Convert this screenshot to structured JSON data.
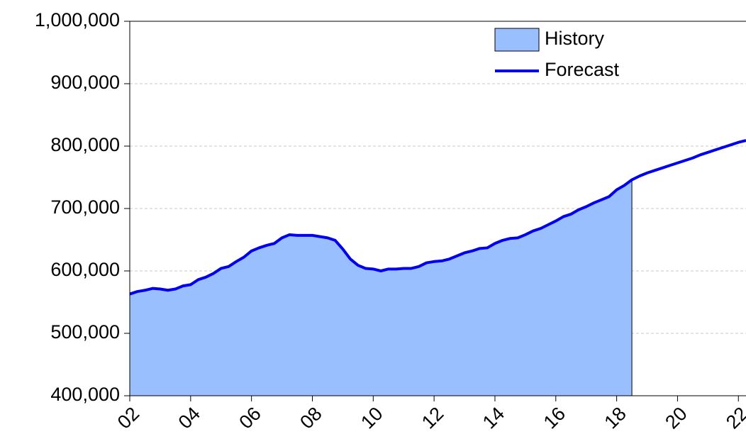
{
  "chart_data": {
    "type": "area-line",
    "x": [
      2002,
      2002.25,
      2002.5,
      2002.75,
      2003,
      2003.25,
      2003.5,
      2003.75,
      2004,
      2004.25,
      2004.5,
      2004.75,
      2005,
      2005.25,
      2005.5,
      2005.75,
      2006,
      2006.25,
      2006.5,
      2006.75,
      2007,
      2007.25,
      2007.5,
      2007.75,
      2008,
      2008.25,
      2008.5,
      2008.75,
      2009,
      2009.25,
      2009.5,
      2009.75,
      2010,
      2010.25,
      2010.5,
      2010.75,
      2011,
      2011.25,
      2011.5,
      2011.75,
      2012,
      2012.25,
      2012.5,
      2012.75,
      2013,
      2013.25,
      2013.5,
      2013.75,
      2014,
      2014.25,
      2014.5,
      2014.75,
      2015,
      2015.25,
      2015.5,
      2015.75,
      2016,
      2016.25,
      2016.5,
      2016.75,
      2017,
      2017.25,
      2017.5,
      2017.75,
      2018,
      2018.25,
      2018.5,
      2018.75,
      2019,
      2019.25,
      2019.5,
      2019.75,
      2020,
      2020.25,
      2020.5,
      2020.75,
      2021,
      2021.25,
      2021.5,
      2021.75,
      2022,
      2022.25
    ],
    "series": [
      {
        "name": "History",
        "color": "#99bfff",
        "kind": "area",
        "values": [
          563000,
          567000,
          569000,
          572000,
          571000,
          569000,
          571000,
          576000,
          578000,
          586000,
          590000,
          596000,
          604000,
          607000,
          615000,
          622000,
          632000,
          637000,
          641000,
          644000,
          653000,
          658000,
          657000,
          657000,
          657000,
          655000,
          653000,
          649000,
          635000,
          619000,
          609000,
          604000,
          603000,
          600000,
          603000,
          603000,
          604000,
          604000,
          607000,
          613000,
          615000,
          616000,
          619000,
          624000,
          629000,
          632000,
          636000,
          637000,
          644000,
          649000,
          652000,
          653000,
          658000,
          664000,
          668000,
          674000,
          680000,
          687000,
          691000,
          698000,
          703000,
          709000,
          714000,
          719000,
          730000,
          737000,
          746000,
          null,
          null,
          null,
          null,
          null,
          null,
          null,
          null,
          null,
          null,
          null,
          null,
          null,
          null,
          null
        ]
      },
      {
        "name": "Forecast",
        "color": "#0000ee",
        "kind": "line",
        "values": [
          563000,
          567000,
          569000,
          572000,
          571000,
          569000,
          571000,
          576000,
          578000,
          586000,
          590000,
          596000,
          604000,
          607000,
          615000,
          622000,
          632000,
          637000,
          641000,
          644000,
          653000,
          658000,
          657000,
          657000,
          657000,
          655000,
          653000,
          649000,
          635000,
          619000,
          609000,
          604000,
          603000,
          600000,
          603000,
          603000,
          604000,
          604000,
          607000,
          613000,
          615000,
          616000,
          619000,
          624000,
          629000,
          632000,
          636000,
          637000,
          644000,
          649000,
          652000,
          653000,
          658000,
          664000,
          668000,
          674000,
          680000,
          687000,
          691000,
          698000,
          703000,
          709000,
          714000,
          719000,
          730000,
          737000,
          746000,
          752000,
          757000,
          761000,
          765000,
          769000,
          773000,
          777000,
          781000,
          786000,
          790000,
          794000,
          798000,
          802000,
          806000,
          809000
        ]
      }
    ],
    "xlim": [
      2002,
      2022.25
    ],
    "xticks": [
      {
        "value": 2002,
        "label": "02"
      },
      {
        "value": 2004,
        "label": "04"
      },
      {
        "value": 2006,
        "label": "06"
      },
      {
        "value": 2008,
        "label": "08"
      },
      {
        "value": 2010,
        "label": "10"
      },
      {
        "value": 2012,
        "label": "12"
      },
      {
        "value": 2014,
        "label": "14"
      },
      {
        "value": 2016,
        "label": "16"
      },
      {
        "value": 2018,
        "label": "18"
      },
      {
        "value": 2020,
        "label": "20"
      },
      {
        "value": 2022,
        "label": "22"
      }
    ],
    "ylim": [
      400000,
      1000000
    ],
    "yticks": [
      {
        "value": 400000,
        "label": "400,000"
      },
      {
        "value": 500000,
        "label": "500,000"
      },
      {
        "value": 600000,
        "label": "600,000"
      },
      {
        "value": 700000,
        "label": "700,000"
      },
      {
        "value": 800000,
        "label": "800,000"
      },
      {
        "value": 900000,
        "label": "900,000"
      },
      {
        "value": 1000000,
        "label": "1,000,000"
      }
    ],
    "grid": true,
    "legend": "top-right"
  }
}
